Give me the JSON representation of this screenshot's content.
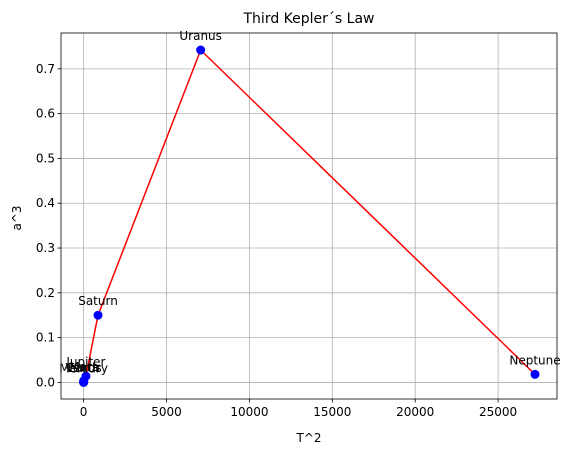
{
  "chart_data": {
    "type": "scatter",
    "title": "Third Kepler´s Law",
    "xlabel": "T^2",
    "ylabel": "a^3",
    "xlim": [
      -1365,
      28552
    ],
    "ylim": [
      -0.037,
      0.78
    ],
    "xticks": [
      0,
      5000,
      10000,
      15000,
      20000,
      25000
    ],
    "yticks": [
      0.0,
      0.1,
      0.2,
      0.3,
      0.4,
      0.5,
      0.6,
      0.7
    ],
    "ytick_labels": [
      "0.0",
      "0.1",
      "0.2",
      "0.3",
      "0.4",
      "0.5",
      "0.6",
      "0.7"
    ],
    "grid": true,
    "colors": {
      "marker": "#0000ff",
      "line": "#ff0000",
      "grid": "#b0b0b0"
    },
    "points": [
      {
        "label": "Mercury",
        "x": 0.06,
        "y": 5e-05
      },
      {
        "label": "Venus",
        "x": 0.38,
        "y": 0.0004
      },
      {
        "label": "Earth",
        "x": 1.0,
        "y": 0.001
      },
      {
        "label": "Mars",
        "x": 3.5,
        "y": 0.0035
      },
      {
        "label": "Jupiter",
        "x": 140,
        "y": 0.014
      },
      {
        "label": "Saturn",
        "x": 868,
        "y": 0.15
      },
      {
        "label": "Uranus",
        "x": 7059,
        "y": 0.742
      },
      {
        "label": "Neptune",
        "x": 27225,
        "y": 0.018
      }
    ]
  }
}
